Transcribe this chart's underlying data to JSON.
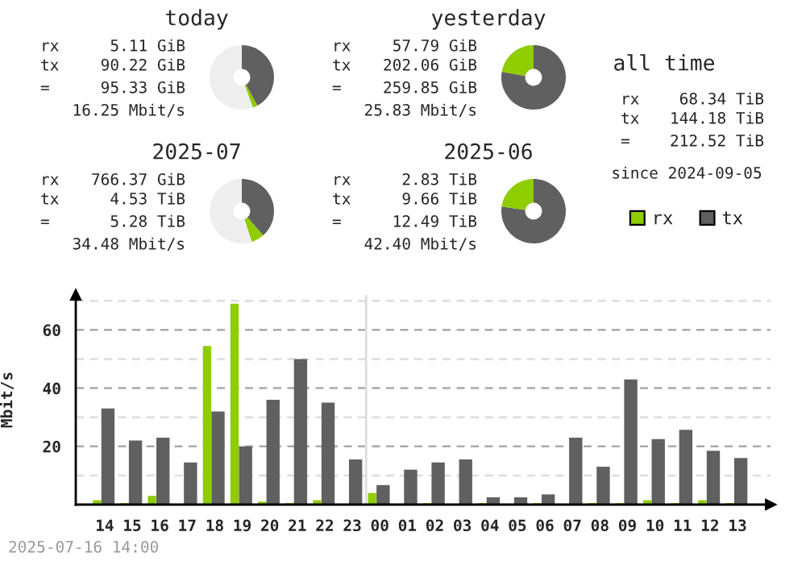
{
  "chart_data": [
    {
      "type": "donut",
      "title": "today",
      "categories": [
        null,
        null,
        null
      ],
      "values": [
        42,
        2.4,
        55.6
      ],
      "colors": [
        "#606060",
        "#8fcc00",
        "#eeeeee"
      ],
      "annotations": [
        "rx",
        "5.11 GiB",
        "tx",
        "90.22 GiB",
        "=",
        "95.33 GiB",
        "16.25 Mbit/s"
      ]
    },
    {
      "type": "donut",
      "title": "yesterday",
      "categories": [
        null,
        null
      ],
      "values": [
        77.8,
        22.2
      ],
      "colors": [
        "#606060",
        "#8fcc00"
      ],
      "annotations": [
        "rx",
        "57.79 GiB",
        "tx",
        "202.06 GiB",
        "=",
        "259.85 GiB",
        "25.83 Mbit/s"
      ]
    },
    {
      "type": "other",
      "title": "all time",
      "annotations": [
        "rx",
        "68.34 TiB",
        "tx",
        "144.18 TiB",
        "=",
        "212.52 TiB",
        "since 2024-09-05"
      ]
    },
    {
      "type": "donut",
      "title": "2025-07",
      "categories": [
        null,
        null,
        null
      ],
      "values": [
        38.5,
        6.5,
        55
      ],
      "colors": [
        "#606060",
        "#8fcc00",
        "#eeeeee"
      ],
      "annotations": [
        "rx",
        "766.37 GiB",
        "tx",
        "4.53 TiB",
        "=",
        "5.28 TiB",
        "34.48 Mbit/s"
      ]
    },
    {
      "type": "donut",
      "title": "2025-06",
      "categories": [
        null,
        null
      ],
      "values": [
        77.3,
        22.7
      ],
      "colors": [
        "#606060",
        "#8fcc00"
      ],
      "annotations": [
        "rx",
        "2.83 TiB",
        "tx",
        "9.66 TiB",
        "=",
        "12.49 TiB",
        "42.40 Mbit/s"
      ]
    },
    {
      "type": "bar",
      "ylabel": "Mbit/s",
      "categories": [
        "14",
        "15",
        "16",
        "17",
        "18",
        "19",
        "20",
        "21",
        "22",
        "23",
        "00",
        "01",
        "02",
        "03",
        "04",
        "05",
        "06",
        "07",
        "08",
        "09",
        "10",
        "11",
        "12",
        "13"
      ],
      "series": [
        {
          "name": "rx",
          "color": "#8fcc00",
          "values": [
            1.5,
            0.5,
            3,
            0,
            54.5,
            69,
            1,
            0.5,
            1.5,
            0,
            4,
            0,
            0.5,
            0,
            0.5,
            0,
            0.5,
            0,
            0.5,
            0.5,
            1.5,
            0.5,
            1.5,
            0.5
          ]
        },
        {
          "name": "tx",
          "color": "#606060",
          "values": [
            33,
            22,
            23,
            14.5,
            32,
            20,
            36,
            50,
            35,
            15.5,
            6.7,
            12,
            14.5,
            15.5,
            2.5,
            2.5,
            3.5,
            23,
            13,
            43,
            22.5,
            25.7,
            18.5,
            16
          ]
        }
      ],
      "ylim": [
        0,
        72
      ],
      "yticks": [
        {
          "value": 0,
          "label": null
        },
        {
          "value": 10,
          "label": null
        },
        20,
        {
          "value": 30,
          "label": null
        },
        40,
        {
          "value": 50,
          "label": null
        },
        60,
        {
          "value": 70,
          "label": null
        }
      ],
      "grid": "y",
      "legend": "top right",
      "ref_lines": [
        {
          "axis": "x",
          "value": "00",
          "color": "#dddddd"
        }
      ],
      "annotations": [
        "2025-07-16 14:00"
      ]
    }
  ]
}
